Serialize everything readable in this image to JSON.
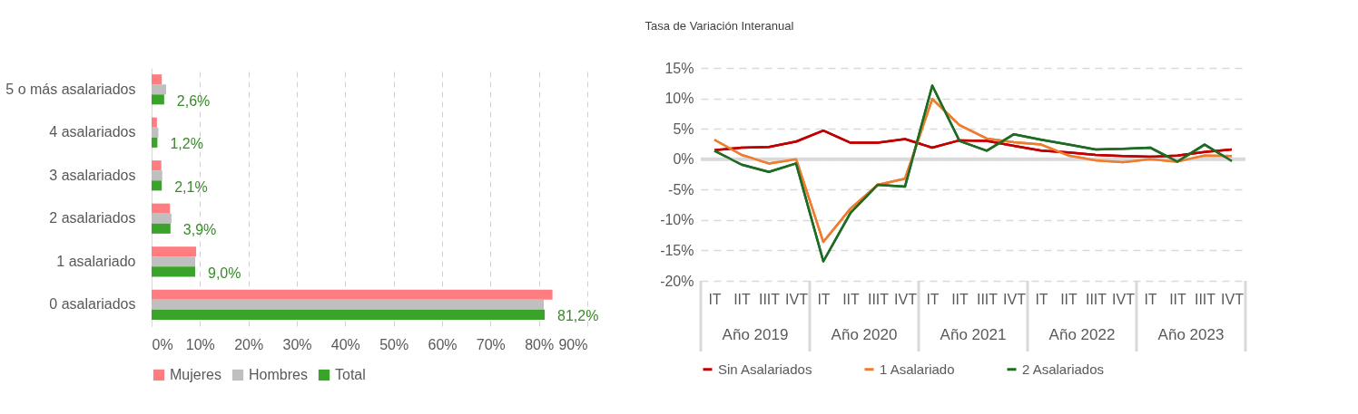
{
  "chart_data": [
    {
      "type": "bar",
      "orientation": "horizontal",
      "categories": [
        "5 o más asalariados",
        "4 asalariados",
        "3 asalariados",
        "2 asalariados",
        "1 asalariado",
        "0 asalariados"
      ],
      "series": [
        {
          "name": "Mujeres",
          "color": "#ff7c80",
          "values": [
            2.1,
            1.1,
            2.0,
            3.8,
            9.2,
            82.8
          ]
        },
        {
          "name": "Hombres",
          "color": "#bfbfbf",
          "values": [
            3.0,
            1.4,
            2.2,
            4.1,
            9.0,
            81.0
          ]
        },
        {
          "name": "Total",
          "color": "#3aa329",
          "values": [
            2.6,
            1.2,
            2.1,
            3.9,
            9.0,
            81.2
          ],
          "value_labels": [
            "2,6%",
            "1,2%",
            "2,1%",
            "3,9%",
            "9,0%",
            "81,2%"
          ]
        }
      ],
      "xlim": [
        0,
        90
      ],
      "xticks": [
        {
          "value": 0,
          "label": "0%"
        },
        {
          "value": 10,
          "label": "10%"
        },
        {
          "value": 20,
          "label": "20%"
        },
        {
          "value": 30,
          "label": "30%"
        },
        {
          "value": 40,
          "label": "40%"
        },
        {
          "value": 50,
          "label": "50%"
        },
        {
          "value": 60,
          "label": "60%"
        },
        {
          "value": 70,
          "label": "70%"
        },
        {
          "value": 80,
          "label": "80%"
        },
        {
          "value": 90,
          "label": "90%"
        }
      ],
      "grid": "x",
      "legend": "bottom"
    },
    {
      "type": "line",
      "ylabel": "Tasa de Variación Interanual",
      "categories": [
        "IT",
        "IIT",
        "IIIT",
        "IVT",
        "IT",
        "IIT",
        "IIIT",
        "IVT",
        "IT",
        "IIT",
        "IIIT",
        "IVT",
        "IT",
        "IIT",
        "IIIT",
        "IVT",
        "IT",
        "IIT",
        "IIIT",
        "IVT"
      ],
      "annotations": [
        "Año 2019",
        "Año 2020",
        "Año 2021",
        "Año 2022",
        "Año 2023"
      ],
      "series": [
        {
          "name": "Sin Asalariados",
          "color": "#c00000",
          "values": [
            1.5,
            1.9,
            2.0,
            2.9,
            4.7,
            2.7,
            2.7,
            3.3,
            1.9,
            3.1,
            3.0,
            2.2,
            1.4,
            1.1,
            0.7,
            0.5,
            0.4,
            0.6,
            1.2,
            1.6
          ]
        },
        {
          "name": "1 Asalariado",
          "color": "#ed7d31",
          "values": [
            3.2,
            0.7,
            -0.7,
            0.0,
            -13.6,
            -8.1,
            -4.2,
            -3.2,
            9.9,
            5.6,
            3.4,
            2.8,
            2.4,
            0.6,
            -0.2,
            -0.5,
            0.0,
            -0.4,
            0.6,
            0.5
          ]
        },
        {
          "name": "2 Asalariados",
          "color": "#1e6b24",
          "values": [
            1.4,
            -0.9,
            -2.1,
            -0.7,
            -16.8,
            -8.8,
            -4.2,
            -4.5,
            12.1,
            3.0,
            1.4,
            4.1,
            3.2,
            2.4,
            1.6,
            1.7,
            1.9,
            -0.4,
            2.4,
            -0.3
          ]
        }
      ],
      "ylim": [
        -20,
        15
      ],
      "yticks": [
        {
          "value": -20,
          "label": "-20%"
        },
        {
          "value": -15,
          "label": "-15%"
        },
        {
          "value": -10,
          "label": "-10%"
        },
        {
          "value": -5,
          "label": "-5%"
        },
        {
          "value": 0,
          "label": "0%"
        },
        {
          "value": 5,
          "label": "5%"
        },
        {
          "value": 10,
          "label": "10%"
        },
        {
          "value": 15,
          "label": "15%"
        }
      ],
      "ref_lines": [
        {
          "axis": "y",
          "value": 0,
          "color": "#d9d9d9"
        }
      ],
      "grid": "y",
      "legend": "bottom"
    }
  ]
}
